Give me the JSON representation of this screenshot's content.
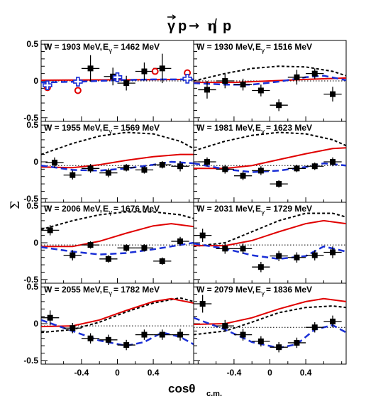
{
  "figure": {
    "reaction": {
      "gamma": "γ",
      "p": "p",
      "arrow": "→",
      "eta": "η",
      "prime": "/",
      "p2": "p"
    },
    "y_axis_symbol": "Σ",
    "x_axis_main": "cosθ",
    "x_axis_sub": "c.m.",
    "x_ticks": [
      "-0.4",
      "0",
      "0.4"
    ]
  },
  "colors": {
    "data_points": "#000000",
    "red_curve": "#e00000",
    "blue_curve": "#1a2fd6",
    "black_dashed": "#000000",
    "dotted": "#000000",
    "open_circle": "#e00000",
    "open_cross": "#1a2fd6"
  },
  "chart_data": [
    {
      "type": "scatter",
      "W": "W = 1903 MeV",
      "E_label": "E",
      "E_sub": "γ",
      "E_val": "= 1462 MeV",
      "xlim": [
        -0.85,
        0.85
      ],
      "ylim": [
        -0.55,
        0.55
      ],
      "yticks": [
        "0.5",
        "0",
        "-0.5"
      ],
      "points": [
        [
          -0.3,
          0.17,
          0.18
        ],
        [
          -0.05,
          0.06,
          0.12
        ],
        [
          0.1,
          -0.03,
          0.1
        ],
        [
          0.3,
          0.13,
          0.12
        ],
        [
          0.5,
          0.17,
          0.2
        ]
      ],
      "open_circles": [
        [
          -0.78,
          -0.09
        ],
        [
          -0.44,
          -0.13
        ],
        [
          0.42,
          0.13
        ],
        [
          0.78,
          0.11
        ]
      ],
      "open_crosses": [
        [
          -0.78,
          -0.06
        ],
        [
          -0.44,
          -0.01
        ],
        [
          0.0,
          0.05
        ],
        [
          0.78,
          0.03
        ]
      ],
      "red": [
        [
          -0.85,
          0.01
        ],
        [
          0.85,
          0.02
        ]
      ],
      "blue": [
        [
          -0.85,
          -0.02
        ],
        [
          -0.4,
          -0.01
        ],
        [
          0.0,
          0.01
        ],
        [
          0.4,
          0.02
        ],
        [
          0.85,
          0.02
        ]
      ],
      "black_dashed": [],
      "dotted": [
        [
          -0.85,
          0.0
        ],
        [
          0.85,
          0.0
        ]
      ]
    },
    {
      "type": "scatter",
      "W": "W = 1930 MeV",
      "E_label": "E",
      "E_sub": "γ",
      "E_val": "= 1516 MeV",
      "xlim": [
        -0.85,
        0.85
      ],
      "ylim": [
        -0.55,
        0.55
      ],
      "yticks": [],
      "points": [
        [
          -0.7,
          -0.12,
          0.12
        ],
        [
          -0.5,
          0.0,
          0.1
        ],
        [
          -0.3,
          -0.05,
          0.08
        ],
        [
          -0.1,
          -0.13,
          0.08
        ],
        [
          0.1,
          -0.33,
          0.08
        ],
        [
          0.3,
          0.05,
          0.1
        ],
        [
          0.5,
          0.1,
          0.07
        ],
        [
          0.7,
          -0.18,
          0.1
        ]
      ],
      "open_circles": [],
      "open_crosses": [],
      "red": [
        [
          -0.85,
          -0.02
        ],
        [
          -0.4,
          -0.02
        ],
        [
          0.0,
          0.0
        ],
        [
          0.4,
          0.02
        ],
        [
          0.85,
          0.04
        ]
      ],
      "blue": [
        [
          -0.85,
          -0.03
        ],
        [
          -0.5,
          -0.05
        ],
        [
          -0.2,
          -0.05
        ],
        [
          0.1,
          -0.01
        ],
        [
          0.4,
          0.05
        ],
        [
          0.6,
          0.07
        ],
        [
          0.85,
          0.01
        ]
      ],
      "black_dashed": [
        [
          -0.85,
          0.0
        ],
        [
          -0.5,
          0.1
        ],
        [
          -0.2,
          0.17
        ],
        [
          0.1,
          0.2
        ],
        [
          0.4,
          0.19
        ],
        [
          0.7,
          0.13
        ],
        [
          0.85,
          0.07
        ]
      ],
      "dotted": [
        [
          -0.85,
          0.0
        ],
        [
          0.85,
          0.0
        ]
      ]
    },
    {
      "type": "scatter",
      "W": "W = 1955 MeV",
      "E_label": "E",
      "E_sub": "γ",
      "E_val": "= 1569 MeV",
      "xlim": [
        -0.85,
        0.85
      ],
      "ylim": [
        -0.55,
        0.55
      ],
      "yticks": [
        "0.5",
        "0",
        "-0.5"
      ],
      "points": [
        [
          -0.7,
          -0.01,
          0.07
        ],
        [
          -0.5,
          -0.18,
          0.06
        ],
        [
          -0.3,
          -0.09,
          0.06
        ],
        [
          -0.1,
          -0.15,
          0.06
        ],
        [
          0.1,
          -0.08,
          0.05
        ],
        [
          0.3,
          -0.11,
          0.05
        ],
        [
          0.5,
          -0.04,
          0.05
        ],
        [
          0.7,
          -0.06,
          0.07
        ]
      ],
      "open_circles": [],
      "open_crosses": [],
      "red": [
        [
          -0.85,
          -0.07
        ],
        [
          -0.5,
          -0.08
        ],
        [
          -0.2,
          -0.04
        ],
        [
          0.1,
          0.02
        ],
        [
          0.4,
          0.07
        ],
        [
          0.7,
          0.1
        ],
        [
          0.85,
          0.1
        ]
      ],
      "blue": [
        [
          -0.85,
          -0.05
        ],
        [
          -0.5,
          -0.11
        ],
        [
          -0.2,
          -0.12
        ],
        [
          0.1,
          -0.09
        ],
        [
          0.4,
          -0.04
        ],
        [
          0.6,
          0.0
        ],
        [
          0.85,
          -0.02
        ]
      ],
      "black_dashed": [
        [
          -0.85,
          0.1
        ],
        [
          -0.5,
          0.25
        ],
        [
          -0.2,
          0.35
        ],
        [
          0.1,
          0.4
        ],
        [
          0.4,
          0.38
        ],
        [
          0.7,
          0.28
        ],
        [
          0.85,
          0.18
        ]
      ],
      "dotted": [
        [
          -0.85,
          -0.05
        ],
        [
          0.85,
          -0.05
        ]
      ]
    },
    {
      "type": "scatter",
      "W": "W = 1981 MeV",
      "E_label": "E",
      "E_sub": "γ",
      "E_val": "= 1623 MeV",
      "xlim": [
        -0.85,
        0.85
      ],
      "ylim": [
        -0.55,
        0.55
      ],
      "yticks": [],
      "points": [
        [
          -0.7,
          0.0,
          0.06
        ],
        [
          -0.5,
          -0.1,
          0.06
        ],
        [
          -0.3,
          -0.19,
          0.06
        ],
        [
          -0.1,
          -0.12,
          0.06
        ],
        [
          0.1,
          -0.3,
          0.05
        ],
        [
          0.3,
          -0.09,
          0.05
        ],
        [
          0.5,
          -0.06,
          0.05
        ],
        [
          0.7,
          0.0,
          0.06
        ]
      ],
      "open_circles": [],
      "open_crosses": [],
      "red": [
        [
          -0.85,
          -0.09
        ],
        [
          -0.5,
          -0.09
        ],
        [
          -0.2,
          -0.05
        ],
        [
          0.1,
          0.03
        ],
        [
          0.4,
          0.11
        ],
        [
          0.7,
          0.18
        ],
        [
          0.85,
          0.19
        ]
      ],
      "blue": [
        [
          -0.85,
          -0.02
        ],
        [
          -0.5,
          -0.1
        ],
        [
          -0.2,
          -0.14
        ],
        [
          0.1,
          -0.12
        ],
        [
          0.4,
          -0.07
        ],
        [
          0.6,
          -0.02
        ],
        [
          0.85,
          -0.05
        ]
      ],
      "black_dashed": [
        [
          -0.85,
          0.15
        ],
        [
          -0.5,
          0.28
        ],
        [
          -0.2,
          0.36
        ],
        [
          0.1,
          0.4
        ],
        [
          0.4,
          0.38
        ],
        [
          0.7,
          0.3
        ],
        [
          0.85,
          0.22
        ]
      ],
      "dotted": [
        [
          -0.85,
          -0.05
        ],
        [
          0.85,
          -0.05
        ]
      ]
    },
    {
      "type": "scatter",
      "W": "W = 2006 MeV",
      "E_label": "E",
      "E_sub": "γ",
      "E_val": "= 1676 MeV",
      "xlim": [
        -0.85,
        0.85
      ],
      "ylim": [
        -0.55,
        0.55
      ],
      "yticks": [
        "0.5",
        "0",
        "-0.5"
      ],
      "points": [
        [
          -0.75,
          0.17,
          0.07
        ],
        [
          -0.5,
          -0.17,
          0.07
        ],
        [
          -0.3,
          -0.03,
          0.05
        ],
        [
          -0.1,
          -0.22,
          0.05
        ],
        [
          0.1,
          -0.07,
          0.05
        ],
        [
          0.3,
          -0.07,
          0.05
        ],
        [
          0.5,
          -0.25,
          0.05
        ],
        [
          0.7,
          0.02,
          0.06
        ]
      ],
      "open_circles": [],
      "open_crosses": [],
      "red": [
        [
          -0.85,
          -0.05
        ],
        [
          -0.5,
          -0.05
        ],
        [
          -0.2,
          0.02
        ],
        [
          0.1,
          0.13
        ],
        [
          0.4,
          0.23
        ],
        [
          0.6,
          0.26
        ],
        [
          0.85,
          0.22
        ]
      ],
      "blue": [
        [
          -0.85,
          -0.06
        ],
        [
          -0.5,
          -0.12
        ],
        [
          -0.2,
          -0.16
        ],
        [
          0.1,
          -0.14
        ],
        [
          0.4,
          -0.09
        ],
        [
          0.6,
          -0.05
        ],
        [
          0.85,
          0.0
        ]
      ],
      "black_dashed": [
        [
          -0.85,
          0.18
        ],
        [
          -0.5,
          0.3
        ],
        [
          -0.2,
          0.38
        ],
        [
          0.1,
          0.42
        ],
        [
          0.4,
          0.42
        ],
        [
          0.7,
          0.38
        ],
        [
          0.85,
          0.33
        ]
      ],
      "dotted": [
        [
          -0.85,
          -0.03
        ],
        [
          0.85,
          -0.03
        ]
      ]
    },
    {
      "type": "scatter",
      "W": "W = 2031 MeV",
      "E_label": "E",
      "E_sub": "γ",
      "E_val": "= 1729 MeV",
      "xlim": [
        -0.85,
        0.85
      ],
      "ylim": [
        -0.55,
        0.55
      ],
      "yticks": [],
      "points": [
        [
          -0.75,
          0.1,
          0.09
        ],
        [
          -0.5,
          -0.08,
          0.07
        ],
        [
          -0.3,
          -0.08,
          0.07
        ],
        [
          -0.1,
          -0.33,
          0.07
        ],
        [
          0.1,
          -0.18,
          0.07
        ],
        [
          0.3,
          -0.2,
          0.07
        ],
        [
          0.5,
          -0.17,
          0.07
        ],
        [
          0.7,
          -0.13,
          0.08
        ]
      ],
      "open_circles": [],
      "open_crosses": [],
      "red": [
        [
          -0.85,
          -0.04
        ],
        [
          -0.5,
          -0.04
        ],
        [
          -0.2,
          0.03
        ],
        [
          0.1,
          0.15
        ],
        [
          0.4,
          0.26
        ],
        [
          0.6,
          0.3
        ],
        [
          0.85,
          0.26
        ]
      ],
      "blue": [
        [
          -0.85,
          -0.01
        ],
        [
          -0.5,
          -0.08
        ],
        [
          -0.2,
          -0.17
        ],
        [
          0.1,
          -0.22
        ],
        [
          0.4,
          -0.18
        ],
        [
          0.6,
          -0.05
        ],
        [
          0.85,
          -0.12
        ]
      ],
      "black_dashed": [
        [
          -0.85,
          -0.05
        ],
        [
          -0.5,
          0.0
        ],
        [
          -0.2,
          0.15
        ],
        [
          0.1,
          0.3
        ],
        [
          0.4,
          0.4
        ],
        [
          0.7,
          0.4
        ],
        [
          0.85,
          0.35
        ]
      ],
      "dotted": [
        [
          -0.85,
          -0.03
        ],
        [
          0.85,
          -0.03
        ]
      ]
    },
    {
      "type": "scatter",
      "W": "W = 2055 MeV",
      "E_label": "E",
      "E_sub": "γ",
      "E_val": "= 1782 MeV",
      "xlim": [
        -0.85,
        0.85
      ],
      "ylim": [
        -0.55,
        0.55
      ],
      "yticks": [
        "0.5",
        "0",
        "-0.5"
      ],
      "points": [
        [
          -0.75,
          0.08,
          0.1
        ],
        [
          -0.5,
          -0.06,
          0.07
        ],
        [
          -0.3,
          -0.2,
          0.07
        ],
        [
          -0.1,
          -0.22,
          0.07
        ],
        [
          0.1,
          -0.29,
          0.07
        ],
        [
          0.3,
          -0.15,
          0.07
        ],
        [
          0.5,
          -0.15,
          0.07
        ],
        [
          0.7,
          -0.15,
          0.08
        ]
      ],
      "open_circles": [],
      "open_crosses": [],
      "red": [
        [
          -0.85,
          -0.04
        ],
        [
          -0.5,
          -0.03
        ],
        [
          -0.2,
          0.05
        ],
        [
          0.1,
          0.18
        ],
        [
          0.4,
          0.3
        ],
        [
          0.6,
          0.34
        ],
        [
          0.85,
          0.28
        ]
      ],
      "blue": [
        [
          -0.85,
          0.05
        ],
        [
          -0.5,
          -0.1
        ],
        [
          -0.2,
          -0.23
        ],
        [
          0.1,
          -0.3
        ],
        [
          0.3,
          -0.25
        ],
        [
          0.5,
          -0.12
        ],
        [
          0.7,
          -0.18
        ],
        [
          0.85,
          -0.28
        ]
      ],
      "black_dashed": [
        [
          -0.85,
          -0.12
        ],
        [
          -0.5,
          -0.08
        ],
        [
          -0.2,
          0.02
        ],
        [
          0.1,
          0.16
        ],
        [
          0.4,
          0.28
        ],
        [
          0.7,
          0.35
        ],
        [
          0.85,
          0.3
        ]
      ],
      "dotted": [
        [
          -0.85,
          -0.03
        ],
        [
          0.85,
          -0.03
        ]
      ]
    },
    {
      "type": "scatter",
      "W": "W = 2079 MeV",
      "E_label": "E",
      "E_sub": "γ",
      "E_val": "= 1836 MeV",
      "xlim": [
        -0.85,
        0.85
      ],
      "ylim": [
        -0.55,
        0.55
      ],
      "yticks": [],
      "points": [
        [
          -0.75,
          0.27,
          0.12
        ],
        [
          -0.5,
          -0.03,
          0.08
        ],
        [
          -0.3,
          -0.15,
          0.08
        ],
        [
          -0.1,
          -0.24,
          0.07
        ],
        [
          0.1,
          -0.32,
          0.07
        ],
        [
          0.3,
          -0.26,
          0.07
        ],
        [
          0.5,
          -0.05,
          0.07
        ],
        [
          0.7,
          0.03,
          0.08
        ]
      ],
      "open_circles": [],
      "open_crosses": [],
      "red": [
        [
          -0.85,
          -0.01
        ],
        [
          -0.5,
          0.0
        ],
        [
          -0.2,
          0.08
        ],
        [
          0.1,
          0.2
        ],
        [
          0.4,
          0.3
        ],
        [
          0.6,
          0.34
        ],
        [
          0.85,
          0.3
        ]
      ],
      "blue": [
        [
          -0.85,
          0.08
        ],
        [
          -0.5,
          -0.08
        ],
        [
          -0.2,
          -0.25
        ],
        [
          0.1,
          -0.33
        ],
        [
          0.3,
          -0.28
        ],
        [
          0.5,
          -0.08
        ],
        [
          0.7,
          -0.02
        ],
        [
          0.85,
          -0.12
        ]
      ],
      "black_dashed": [
        [
          -0.85,
          -0.15
        ],
        [
          -0.5,
          -0.1
        ],
        [
          -0.2,
          0.02
        ],
        [
          0.1,
          0.15
        ],
        [
          0.4,
          0.22
        ],
        [
          0.7,
          0.24
        ],
        [
          0.85,
          0.22
        ]
      ],
      "dotted": [
        [
          -0.85,
          -0.05
        ],
        [
          0.85,
          -0.05
        ]
      ]
    }
  ]
}
